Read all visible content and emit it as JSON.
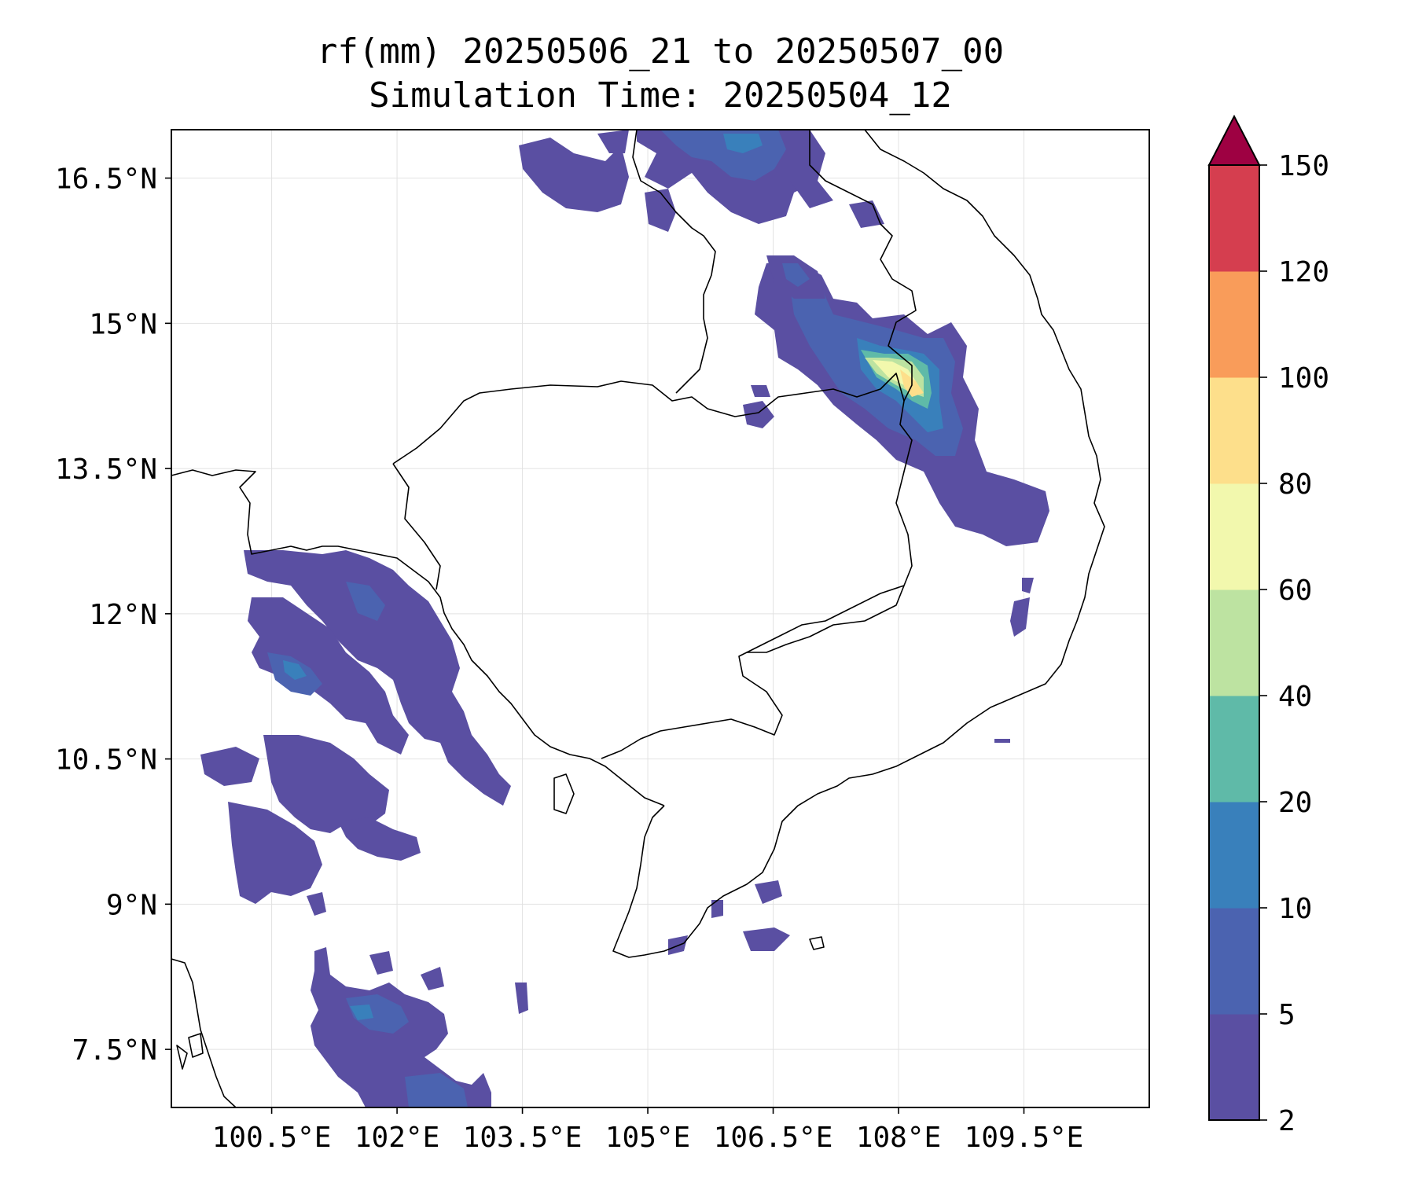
{
  "title": {
    "line1": "rf(mm) 20250506_21 to 20250507_00",
    "line2": "Simulation Time: 20250504_12"
  },
  "map": {
    "lon_range": [
      99.3,
      111.0
    ],
    "lat_range": [
      6.9,
      17.0
    ],
    "lon_ticks": [
      "100.5°E",
      "102°E",
      "103.5°E",
      "105°E",
      "106.5°E",
      "108°E",
      "109.5°E"
    ],
    "lon_tick_values": [
      100.5,
      102,
      103.5,
      105,
      106.5,
      108,
      109.5
    ],
    "lat_ticks": [
      "16.5°N",
      "15°N",
      "13.5°N",
      "12°N",
      "10.5°N",
      "9°N",
      "7.5°N"
    ],
    "lat_tick_values": [
      16.5,
      15,
      13.5,
      12,
      10.5,
      9,
      7.5
    ],
    "gridlines": true
  },
  "colorbar": {
    "levels": [
      "2",
      "5",
      "10",
      "20",
      "40",
      "60",
      "80",
      "100",
      "120",
      "150"
    ],
    "colors": [
      "#5a4fa2",
      "#4b63b0",
      "#3980bb",
      "#5fbaa8",
      "#bde3a1",
      "#f2f8ad",
      "#fddf8b",
      "#f99c5a",
      "#d53e4f",
      "#9e0142"
    ],
    "extend": "max"
  }
}
